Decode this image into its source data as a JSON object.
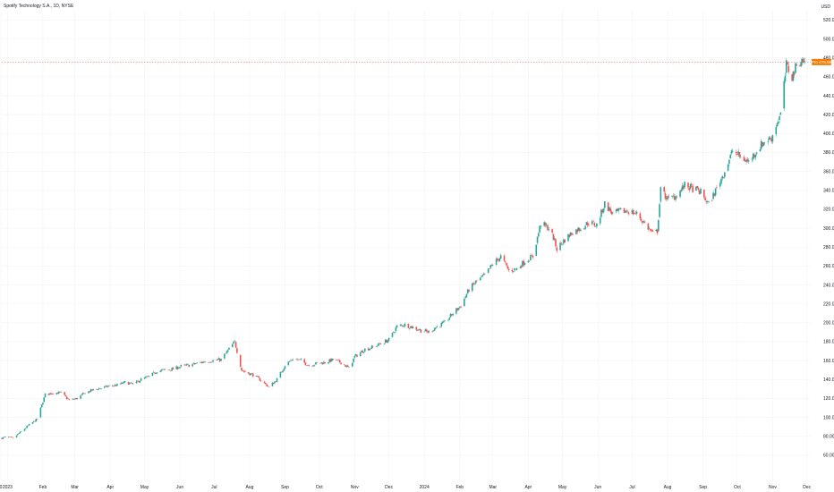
{
  "header": {
    "title": "Spotify Technology S.A., 1D, NYSE",
    "currency": "USD"
  },
  "price_tag": {
    "label": "Pro",
    "value": "475.58"
  },
  "colors": {
    "up": "#26a69a",
    "down": "#ef5350",
    "price_line": "#ef5350",
    "price_tag_bg": "#f57c00",
    "grid": "#f2f3f5",
    "text": "#131722"
  },
  "chart_data": {
    "type": "candlestick",
    "title": "Spotify Technology S.A., 1D, NYSE",
    "ylabel": "USD",
    "ylim": [
      40,
      530
    ],
    "y_ticks": [
      60,
      80,
      100,
      120,
      140,
      160,
      180,
      200,
      220,
      240,
      260,
      280,
      300,
      320,
      340,
      360,
      380,
      400,
      420,
      440,
      460,
      480,
      500,
      520
    ],
    "x_ticks": [
      "0",
      "2023",
      "Feb",
      "Mar",
      "Apr",
      "May",
      "Jun",
      "Jul",
      "Aug",
      "Sep",
      "Oct",
      "Nov",
      "Dec",
      "2024",
      "Feb",
      "Mar",
      "Apr",
      "May",
      "Jun",
      "Jul",
      "Aug",
      "Sep",
      "Oct",
      "Nov",
      "Dec"
    ],
    "last_price": 475.58,
    "close_path": [
      [
        "2022-12-27",
        78
      ],
      [
        "2022-12-30",
        79
      ],
      [
        "2023-01-06",
        78
      ],
      [
        "2023-01-13",
        85
      ],
      [
        "2023-01-20",
        92
      ],
      [
        "2023-01-27",
        98
      ],
      [
        "2023-02-03",
        124
      ],
      [
        "2023-02-10",
        126
      ],
      [
        "2023-02-17",
        126
      ],
      [
        "2023-02-24",
        118
      ],
      [
        "2023-03-03",
        120
      ],
      [
        "2023-03-10",
        126
      ],
      [
        "2023-03-17",
        129
      ],
      [
        "2023-03-24",
        131
      ],
      [
        "2023-03-31",
        133
      ],
      [
        "2023-04-07",
        134
      ],
      [
        "2023-04-14",
        137
      ],
      [
        "2023-04-21",
        135
      ],
      [
        "2023-04-28",
        140
      ],
      [
        "2023-05-05",
        143
      ],
      [
        "2023-05-12",
        149
      ],
      [
        "2023-05-19",
        150
      ],
      [
        "2023-05-26",
        151
      ],
      [
        "2023-06-02",
        154
      ],
      [
        "2023-06-09",
        155
      ],
      [
        "2023-06-16",
        157
      ],
      [
        "2023-06-23",
        159
      ],
      [
        "2023-06-30",
        160
      ],
      [
        "2023-07-07",
        161
      ],
      [
        "2023-07-14",
        172
      ],
      [
        "2023-07-19",
        180
      ],
      [
        "2023-07-25",
        150
      ],
      [
        "2023-07-28",
        148
      ],
      [
        "2023-08-04",
        145
      ],
      [
        "2023-08-11",
        139
      ],
      [
        "2023-08-18",
        132
      ],
      [
        "2023-08-25",
        140
      ],
      [
        "2023-09-01",
        155
      ],
      [
        "2023-09-08",
        162
      ],
      [
        "2023-09-15",
        160
      ],
      [
        "2023-09-22",
        155
      ],
      [
        "2023-09-29",
        157
      ],
      [
        "2023-10-06",
        158
      ],
      [
        "2023-10-13",
        161
      ],
      [
        "2023-10-20",
        158
      ],
      [
        "2023-10-27",
        152
      ],
      [
        "2023-11-01",
        164
      ],
      [
        "2023-11-10",
        172
      ],
      [
        "2023-11-17",
        174
      ],
      [
        "2023-11-24",
        178
      ],
      [
        "2023-12-01",
        182
      ],
      [
        "2023-12-08",
        196
      ],
      [
        "2023-12-15",
        198
      ],
      [
        "2023-12-22",
        195
      ],
      [
        "2023-12-29",
        192
      ],
      [
        "2024-01-05",
        190
      ],
      [
        "2024-01-12",
        196
      ],
      [
        "2024-01-19",
        200
      ],
      [
        "2024-01-26",
        210
      ],
      [
        "2024-02-02",
        218
      ],
      [
        "2024-02-09",
        235
      ],
      [
        "2024-02-16",
        244
      ],
      [
        "2024-02-23",
        250
      ],
      [
        "2024-03-01",
        262
      ],
      [
        "2024-03-08",
        270
      ],
      [
        "2024-03-15",
        255
      ],
      [
        "2024-03-22",
        257
      ],
      [
        "2024-03-29",
        265
      ],
      [
        "2024-04-05",
        270
      ],
      [
        "2024-04-12",
        305
      ],
      [
        "2024-04-19",
        300
      ],
      [
        "2024-04-23",
        290
      ],
      [
        "2024-04-26",
        278
      ],
      [
        "2024-05-03",
        288
      ],
      [
        "2024-05-10",
        296
      ],
      [
        "2024-05-17",
        300
      ],
      [
        "2024-05-24",
        306
      ],
      [
        "2024-05-31",
        303
      ],
      [
        "2024-06-07",
        326
      ],
      [
        "2024-06-14",
        315
      ],
      [
        "2024-06-21",
        318
      ],
      [
        "2024-06-28",
        318
      ],
      [
        "2024-07-05",
        315
      ],
      [
        "2024-07-12",
        305
      ],
      [
        "2024-07-19",
        294
      ],
      [
        "2024-07-23",
        297
      ],
      [
        "2024-07-26",
        340
      ],
      [
        "2024-08-02",
        330
      ],
      [
        "2024-08-09",
        335
      ],
      [
        "2024-08-16",
        345
      ],
      [
        "2024-08-23",
        342
      ],
      [
        "2024-08-30",
        338
      ],
      [
        "2024-09-06",
        325
      ],
      [
        "2024-09-13",
        342
      ],
      [
        "2024-09-20",
        360
      ],
      [
        "2024-09-27",
        382
      ],
      [
        "2024-10-04",
        375
      ],
      [
        "2024-10-11",
        370
      ],
      [
        "2024-10-18",
        382
      ],
      [
        "2024-10-25",
        392
      ],
      [
        "2024-10-31",
        395
      ],
      [
        "2024-11-05",
        412
      ],
      [
        "2024-11-08",
        420
      ],
      [
        "2024-11-13",
        472
      ],
      [
        "2024-11-18",
        460
      ],
      [
        "2024-11-22",
        472
      ],
      [
        "2024-11-26",
        478
      ],
      [
        "2024-11-29",
        475.58
      ]
    ]
  }
}
